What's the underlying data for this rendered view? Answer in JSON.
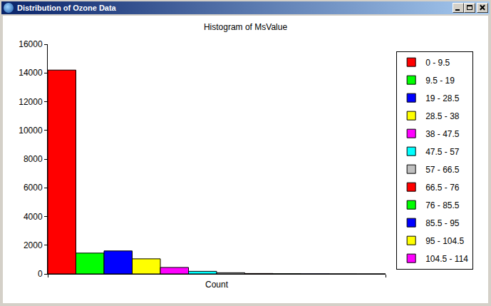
{
  "window": {
    "title": "Distribution of Ozone Data"
  },
  "chart_data": {
    "type": "bar",
    "title": "Histogram of MsValue",
    "xlabel": "Count",
    "categories": [
      "0 - 9.5",
      "9.5 - 19",
      "19 - 28.5",
      "28.5 - 38",
      "38 - 47.5",
      "47.5 - 57",
      "57 - 66.5",
      "66.5 - 76",
      "76 - 85.5",
      "85.5 - 95",
      "95 - 104.5",
      "104.5 - 114"
    ],
    "values": [
      14200,
      1450,
      1600,
      1050,
      450,
      180,
      80,
      30,
      15,
      8,
      4,
      1
    ],
    "colors": [
      "#ff0000",
      "#00ff00",
      "#0000ff",
      "#ffff00",
      "#ff00ff",
      "#00ffff",
      "#c0c0c0",
      "#ff0000",
      "#00ff00",
      "#0000ff",
      "#ffff00",
      "#ff00ff"
    ],
    "ylim": [
      0,
      16000
    ],
    "yticks": [
      0,
      2000,
      4000,
      6000,
      8000,
      10000,
      12000,
      14000,
      16000
    ],
    "grid": false,
    "legend": "right",
    "tick_labels": "y"
  }
}
